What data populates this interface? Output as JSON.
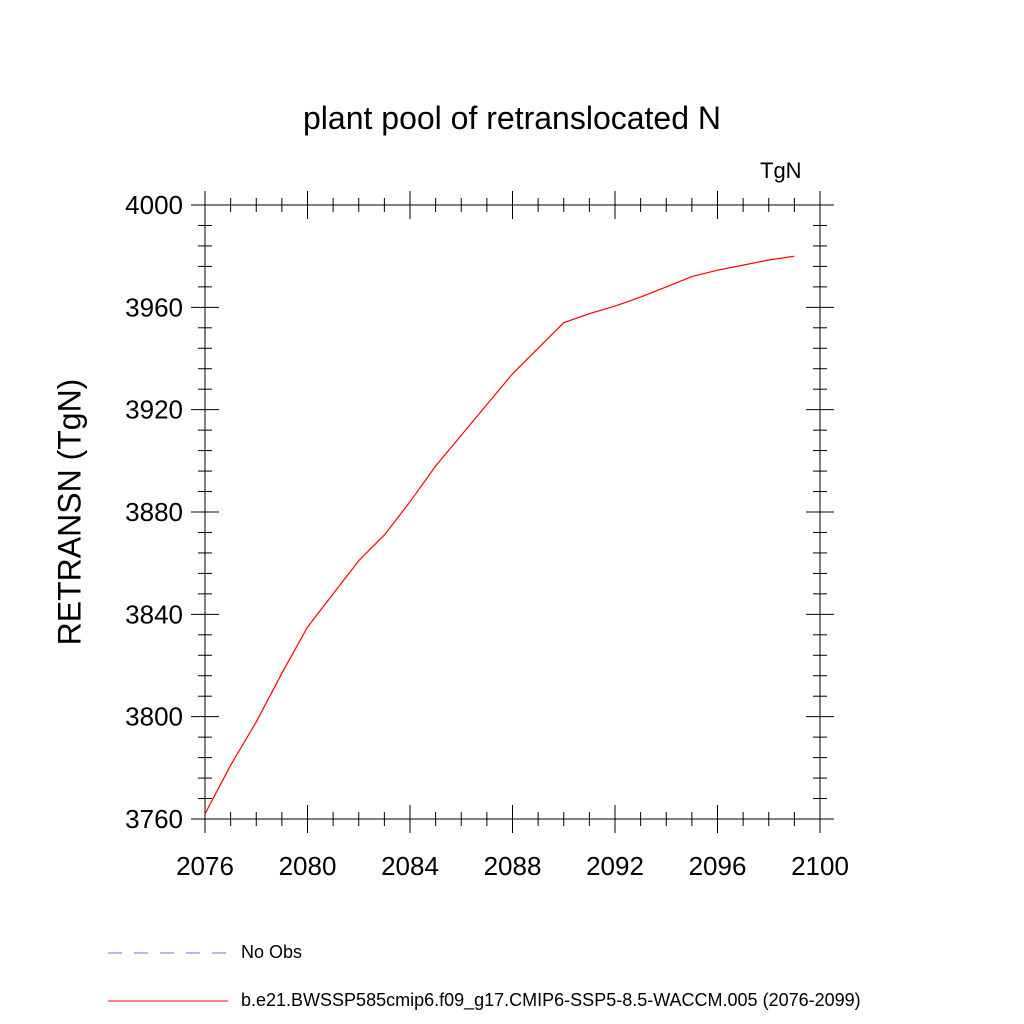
{
  "chart_data": {
    "type": "line",
    "title": "plant pool of retranslocated N",
    "units_label": "TgN",
    "xlabel": "",
    "ylabel": "RETRANSN  (TgN)",
    "xlim": [
      2076,
      2100
    ],
    "ylim": [
      3760,
      4000
    ],
    "xticks": [
      2076,
      2080,
      2084,
      2088,
      2092,
      2096,
      2100
    ],
    "yticks": [
      3760,
      3800,
      3840,
      3880,
      3920,
      3960,
      4000
    ],
    "series": [
      {
        "name": "b.e21.BWSSP585cmip6.f09_g17.CMIP6-SSP5-8.5-WACCM.005 (2076-2099)",
        "color": "#ff0000",
        "style": "solid",
        "x": [
          2076,
          2077,
          2078,
          2079,
          2080,
          2081,
          2082,
          2083,
          2084,
          2085,
          2086,
          2087,
          2088,
          2089,
          2090,
          2091,
          2092,
          2093,
          2094,
          2095,
          2096,
          2097,
          2098,
          2099
        ],
        "y": [
          3762,
          3781,
          3798,
          3817,
          3835,
          3848,
          3861,
          3871,
          3884,
          3898,
          3910,
          3922,
          3934,
          3944,
          3954,
          3957.5,
          3960.5,
          3964,
          3968,
          3972,
          3974.5,
          3976.5,
          3978.5,
          3980
        ]
      }
    ],
    "legend": [
      {
        "label": "No Obs",
        "color": "#7b68ee",
        "style": "dashed"
      },
      {
        "label": "b.e21.BWSSP585cmip6.f09_g17.CMIP6-SSP5-8.5-WACCM.005 (2076-2099)",
        "color": "#ff0000",
        "style": "solid"
      }
    ]
  }
}
